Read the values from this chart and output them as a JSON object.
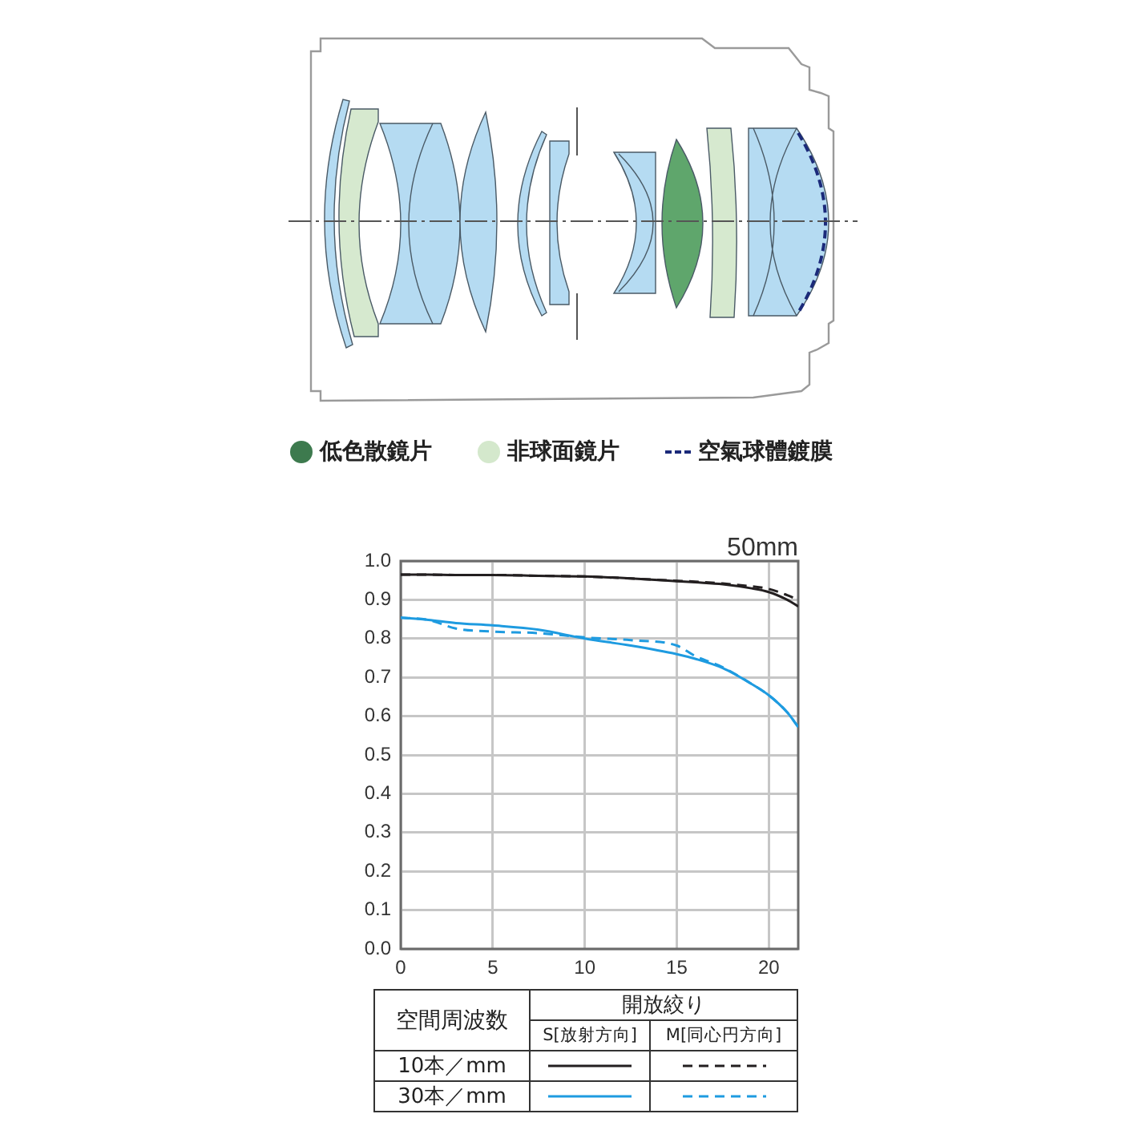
{
  "chart_data": [
    {
      "type": "other",
      "annotations": [
        "低色散鏡片",
        "非球面鏡片",
        "空氣球體鍍膜"
      ]
    },
    {
      "type": "line",
      "title": "50mm",
      "x": [
        0,
        1.5,
        3,
        5,
        7.5,
        10,
        12.5,
        15,
        16,
        17.5,
        19,
        20,
        21,
        21.6
      ],
      "xlim": [
        0,
        21.6
      ],
      "xticks": [
        0,
        5,
        10,
        15,
        20
      ],
      "ylim": [
        0,
        1
      ],
      "yticks": [
        {
          "value": 0,
          "label": "0.0"
        },
        0.1,
        0.2,
        0.3,
        0.4,
        0.5,
        0.6,
        0.7,
        0.8,
        0.9,
        {
          "value": 1,
          "label": "1.0"
        }
      ],
      "grid": true,
      "marker": "none",
      "legend": "bottom",
      "legend_title": "空間周波数",
      "annotations": [
        "開放絞り",
        "S[放射方向]",
        "M[同心円方向]"
      ],
      "series": [
        {
          "name": "10本／mm",
          "color": "#231f20",
          "line_style": "solid",
          "values": [
            0.965,
            0.965,
            0.964,
            0.964,
            0.962,
            0.96,
            0.955,
            0.948,
            0.945,
            0.94,
            0.93,
            0.92,
            0.9,
            0.883
          ]
        },
        {
          "color": "#231f20",
          "line_style": "dashed",
          "values": [
            0.965,
            0.965,
            0.964,
            0.964,
            0.962,
            0.96,
            0.955,
            0.949,
            0.947,
            0.942,
            0.935,
            0.928,
            0.912,
            0.9
          ]
        },
        {
          "name": "30本／mm",
          "color": "#1e9be0",
          "line_style": "solid",
          "values": [
            0.854,
            0.848,
            0.84,
            0.834,
            0.823,
            0.8,
            0.782,
            0.76,
            0.748,
            0.724,
            0.685,
            0.654,
            0.61,
            0.572
          ]
        },
        {
          "color": "#1e9be0",
          "line_style": "dashed",
          "values": [
            0.854,
            0.848,
            0.826,
            0.818,
            0.814,
            0.803,
            0.796,
            0.782,
            0.755,
            0.726,
            0.685,
            0.654,
            0.61,
            0.572
          ]
        }
      ]
    }
  ]
}
